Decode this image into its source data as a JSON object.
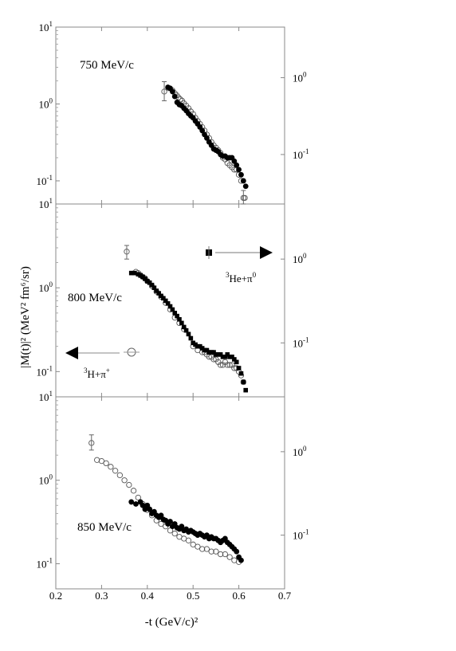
{
  "chart_data": {
    "type": "scatter",
    "ylabel": "|M(t)|² (MeV² fm⁶/sr)",
    "xlabel": "-t (GeV/c)²",
    "xlim": [
      0.2,
      0.7
    ],
    "x_ticks": [
      "0.2",
      "0.3",
      "0.4",
      "0.5",
      "0.6",
      "0.7"
    ],
    "ylim_log": [
      0.05,
      10
    ],
    "left_ticks": [
      {
        "value": 10,
        "base": "10",
        "exp": "1"
      },
      {
        "value": 1,
        "base": "10",
        "exp": "0"
      },
      {
        "value": 0.1,
        "base": "10",
        "exp": "-1"
      }
    ],
    "right_ticks": [
      {
        "value": 2.2,
        "base": "10",
        "exp": "0"
      },
      {
        "value": 0.22,
        "base": "10",
        "exp": "-1"
      }
    ],
    "legend": {
      "open": {
        "prefix_sup": "3",
        "text": "H+π",
        "suffix_sup": "+"
      },
      "filled": {
        "prefix_sup": "3",
        "text": "He+π",
        "suffix_sup": "0"
      }
    },
    "panels": [
      {
        "label": "750 MeV/c",
        "series": [
          {
            "marker": "open",
            "x": [
              0.437,
              0.447,
              0.455,
              0.46,
              0.464,
              0.468,
              0.472,
              0.476,
              0.48,
              0.485,
              0.49,
              0.495,
              0.5,
              0.505,
              0.51,
              0.515,
              0.52,
              0.525,
              0.53,
              0.535,
              0.54,
              0.545,
              0.55,
              0.555,
              0.56,
              0.565,
              0.57,
              0.575,
              0.58,
              0.585,
              0.59,
              0.595,
              0.6,
              0.605,
              0.61,
              0.613
            ],
            "y": [
              1.45,
              1.6,
              1.5,
              1.38,
              1.3,
              1.22,
              1.15,
              1.1,
              1.02,
              0.95,
              0.88,
              0.8,
              0.74,
              0.66,
              0.6,
              0.55,
              0.5,
              0.45,
              0.4,
              0.36,
              0.32,
              0.29,
              0.27,
              0.25,
              0.23,
              0.2,
              0.19,
              0.17,
              0.16,
              0.15,
              0.14,
              0.14,
              0.12,
              0.1,
              0.06,
              0.06
            ]
          },
          {
            "marker": "filled",
            "x": [
              0.445,
              0.45,
              0.455,
              0.46,
              0.465,
              0.47,
              0.475,
              0.48,
              0.485,
              0.49,
              0.495,
              0.5,
              0.505,
              0.51,
              0.515,
              0.52,
              0.525,
              0.53,
              0.535,
              0.54,
              0.545,
              0.55,
              0.555,
              0.56,
              0.565,
              0.57,
              0.575,
              0.58,
              0.585,
              0.59,
              0.595,
              0.6,
              0.605,
              0.61,
              0.615
            ],
            "y": [
              1.65,
              1.6,
              1.45,
              1.25,
              1.05,
              0.98,
              0.95,
              0.88,
              0.82,
              0.75,
              0.7,
              0.66,
              0.6,
              0.55,
              0.5,
              0.45,
              0.4,
              0.36,
              0.32,
              0.29,
              0.26,
              0.25,
              0.24,
              0.22,
              0.21,
              0.21,
              0.2,
              0.2,
              0.2,
              0.18,
              0.16,
              0.14,
              0.12,
              0.1,
              0.085
            ]
          }
        ]
      },
      {
        "label": "800 MeV/c",
        "series": [
          {
            "marker": "open",
            "x": [
              0.355,
              0.375,
              0.38,
              0.385,
              0.39,
              0.395,
              0.4,
              0.41,
              0.42,
              0.43,
              0.44,
              0.45,
              0.46,
              0.47,
              0.48,
              0.5,
              0.51,
              0.52,
              0.525,
              0.53,
              0.535,
              0.54,
              0.545,
              0.55,
              0.555,
              0.56,
              0.565,
              0.57,
              0.575,
              0.58,
              0.585,
              0.59,
              0.595,
              0.6,
              0.605,
              0.61
            ],
            "y": [
              2.7,
              1.55,
              1.5,
              1.42,
              1.35,
              1.3,
              1.2,
              1.05,
              0.9,
              0.78,
              0.66,
              0.55,
              0.44,
              0.38,
              0.32,
              0.2,
              0.18,
              0.17,
              0.17,
              0.16,
              0.15,
              0.15,
              0.14,
              0.14,
              0.13,
              0.12,
              0.12,
              0.13,
              0.12,
              0.12,
              0.12,
              0.11,
              0.11,
              0.1,
              0.09,
              0.075
            ]
          },
          {
            "marker": "filled",
            "x": [
              0.365,
              0.372,
              0.38,
              0.385,
              0.39,
              0.395,
              0.4,
              0.405,
              0.41,
              0.415,
              0.42,
              0.425,
              0.43,
              0.435,
              0.44,
              0.445,
              0.45,
              0.455,
              0.46,
              0.465,
              0.47,
              0.475,
              0.48,
              0.485,
              0.49,
              0.495,
              0.5,
              0.505,
              0.51,
              0.515,
              0.52,
              0.525,
              0.53,
              0.535,
              0.54,
              0.545,
              0.55,
              0.555,
              0.56,
              0.565,
              0.57,
              0.575,
              0.58,
              0.585,
              0.59,
              0.595,
              0.6,
              0.605,
              0.61,
              0.615
            ],
            "y": [
              1.5,
              1.5,
              1.45,
              1.4,
              1.35,
              1.28,
              1.2,
              1.15,
              1.08,
              1.0,
              0.92,
              0.86,
              0.8,
              0.75,
              0.7,
              0.65,
              0.6,
              0.55,
              0.5,
              0.46,
              0.42,
              0.38,
              0.34,
              0.31,
              0.28,
              0.25,
              0.22,
              0.21,
              0.2,
              0.2,
              0.19,
              0.18,
              0.18,
              0.17,
              0.17,
              0.17,
              0.16,
              0.16,
              0.16,
              0.15,
              0.15,
              0.16,
              0.15,
              0.15,
              0.14,
              0.13,
              0.11,
              0.095,
              0.075,
              0.06
            ]
          }
        ]
      },
      {
        "label": "850 MeV/c",
        "series": [
          {
            "marker": "open",
            "x": [
              0.278,
              0.29,
              0.3,
              0.31,
              0.32,
              0.33,
              0.34,
              0.35,
              0.36,
              0.37,
              0.38,
              0.39,
              0.4,
              0.41,
              0.42,
              0.43,
              0.44,
              0.45,
              0.46,
              0.47,
              0.48,
              0.49,
              0.5,
              0.51,
              0.52,
              0.53,
              0.54,
              0.55,
              0.56,
              0.57,
              0.58,
              0.59,
              0.6
            ],
            "y": [
              2.8,
              1.75,
              1.7,
              1.6,
              1.45,
              1.3,
              1.15,
              1.0,
              0.88,
              0.75,
              0.62,
              0.52,
              0.44,
              0.38,
              0.33,
              0.3,
              0.28,
              0.25,
              0.23,
              0.21,
              0.2,
              0.19,
              0.17,
              0.16,
              0.15,
              0.15,
              0.14,
              0.14,
              0.13,
              0.13,
              0.12,
              0.11,
              0.105
            ]
          },
          {
            "marker": "filled",
            "x": [
              0.365,
              0.375,
              0.385,
              0.39,
              0.395,
              0.4,
              0.405,
              0.41,
              0.415,
              0.42,
              0.425,
              0.43,
              0.435,
              0.44,
              0.445,
              0.45,
              0.455,
              0.46,
              0.465,
              0.47,
              0.475,
              0.48,
              0.485,
              0.49,
              0.495,
              0.5,
              0.505,
              0.51,
              0.515,
              0.52,
              0.525,
              0.53,
              0.535,
              0.54,
              0.545,
              0.55,
              0.555,
              0.56,
              0.565,
              0.57,
              0.575,
              0.58,
              0.585,
              0.59,
              0.595,
              0.6,
              0.605
            ],
            "y": [
              0.55,
              0.52,
              0.55,
              0.5,
              0.45,
              0.5,
              0.45,
              0.4,
              0.42,
              0.38,
              0.36,
              0.38,
              0.34,
              0.33,
              0.3,
              0.32,
              0.28,
              0.3,
              0.27,
              0.26,
              0.28,
              0.25,
              0.26,
              0.24,
              0.25,
              0.24,
              0.23,
              0.22,
              0.23,
              0.22,
              0.21,
              0.22,
              0.2,
              0.21,
              0.2,
              0.2,
              0.19,
              0.18,
              0.19,
              0.2,
              0.18,
              0.17,
              0.16,
              0.15,
              0.14,
              0.12,
              0.11
            ]
          }
        ]
      }
    ]
  }
}
